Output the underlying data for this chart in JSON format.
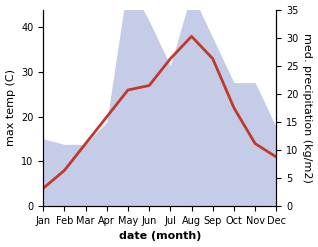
{
  "months": [
    "Jan",
    "Feb",
    "Mar",
    "Apr",
    "May",
    "Jun",
    "Jul",
    "Aug",
    "Sep",
    "Oct",
    "Nov",
    "Dec"
  ],
  "temp": [
    4,
    8,
    14,
    20,
    26,
    27,
    33,
    38,
    33,
    22,
    14,
    11
  ],
  "precip_mm": [
    12,
    11,
    11,
    15,
    40,
    33,
    25,
    38,
    30,
    22,
    22,
    14
  ],
  "temp_color": "#c0392b",
  "precip_fill_color": "#c5cce8",
  "left_ylabel": "max temp (C)",
  "right_ylabel": "med. precipitation (kg/m2)",
  "xlabel": "date (month)",
  "left_ylim": [
    0,
    44
  ],
  "left_yticks": [
    0,
    10,
    20,
    30,
    40
  ],
  "right_ylim": [
    0,
    35
  ],
  "right_yticks": [
    0,
    5,
    10,
    15,
    20,
    25,
    30,
    35
  ],
  "temp_linewidth": 2.0,
  "xlabel_fontsize": 8,
  "ylabel_fontsize": 8,
  "tick_fontsize": 7
}
